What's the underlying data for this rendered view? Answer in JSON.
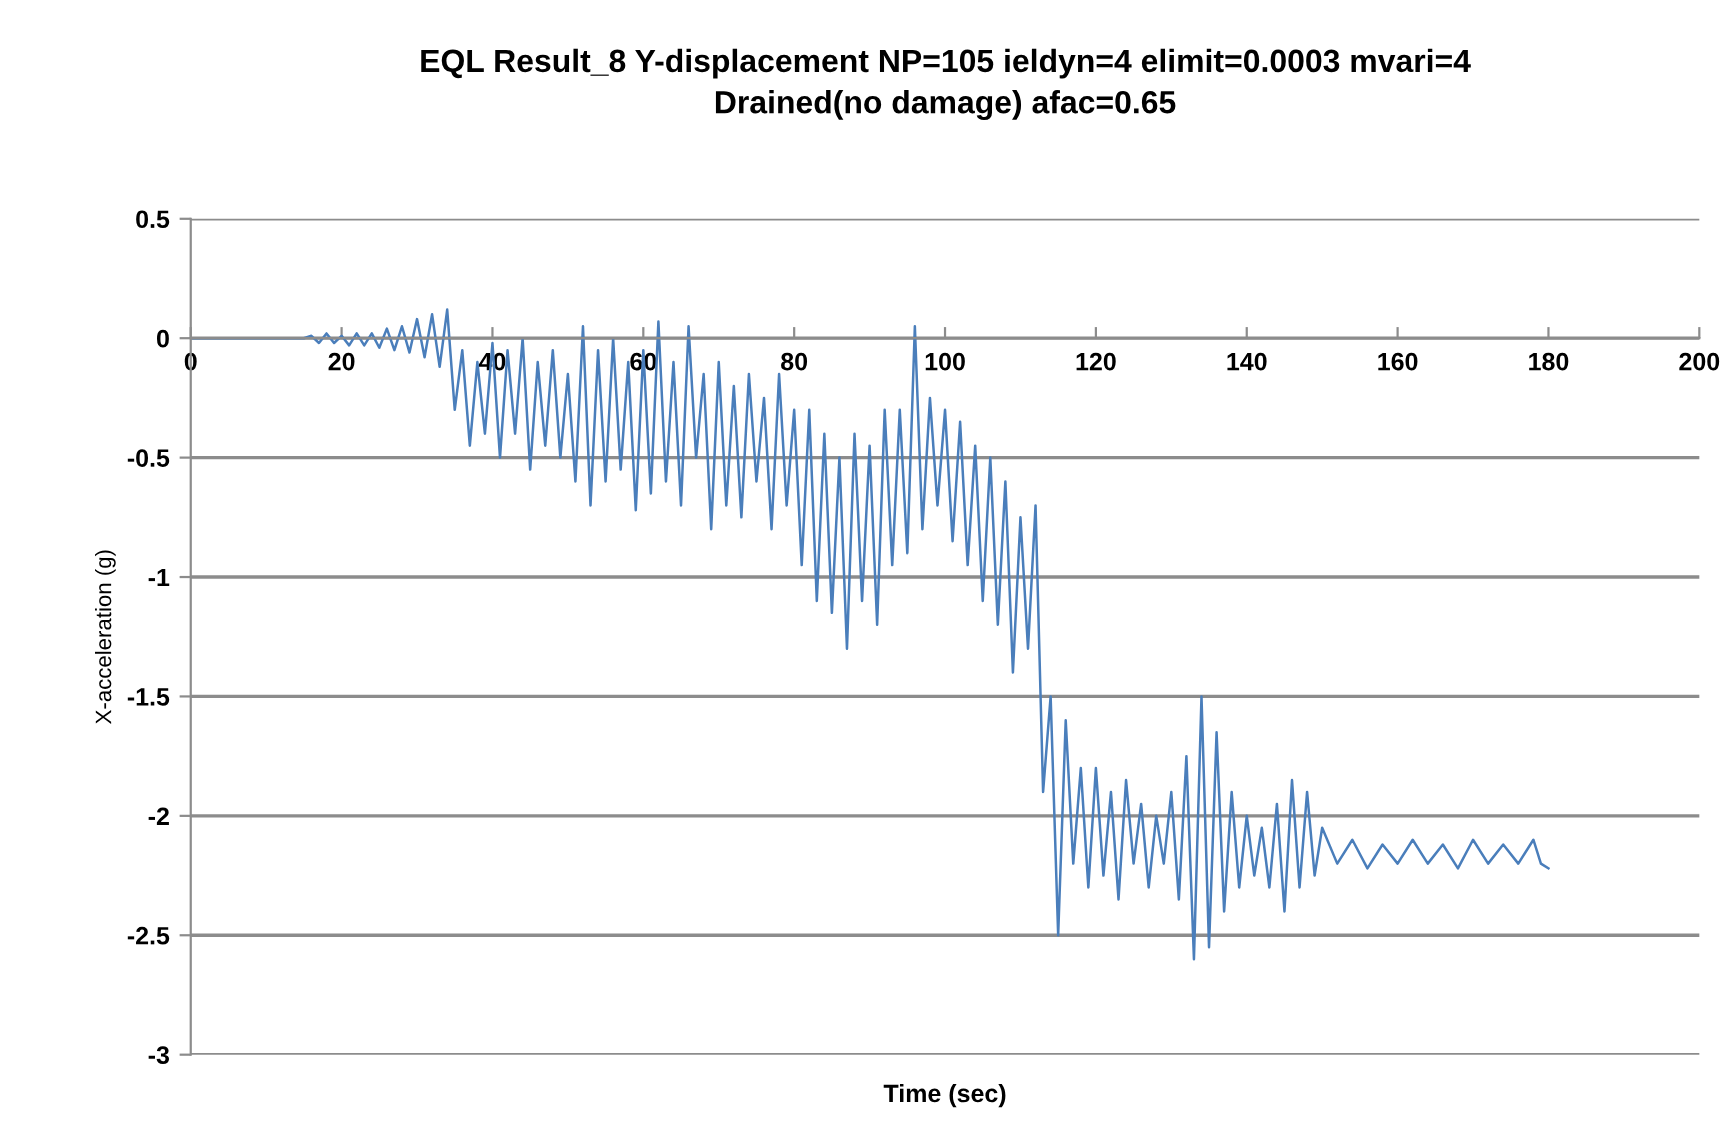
{
  "chart_data": {
    "type": "line",
    "title": "EQL Result_8 Y-displacement NP=105 ieldyn=4 elimit=0.0003 mvari=4\nDrained(no damage) afac=0.65",
    "xlabel": "Time (sec)",
    "ylabel": "X-acceleration (g)",
    "xlim": [
      0,
      200
    ],
    "xticks": [
      0,
      20,
      40,
      60,
      80,
      100,
      120,
      140,
      160,
      180,
      200
    ],
    "ylim": [
      -3,
      0.5
    ],
    "yticks": [
      -3,
      -2.5,
      -2,
      -1.5,
      -1,
      -0.5,
      0,
      0.5
    ],
    "grid": "y",
    "marker": "none",
    "line_style": "solid",
    "series": [
      {
        "color": "#4a7ebb",
        "x": [
          0,
          15,
          16,
          17,
          18,
          19,
          20,
          21,
          22,
          23,
          24,
          25,
          26,
          27,
          28,
          29,
          30,
          31,
          32,
          33,
          34,
          35,
          36,
          37,
          38,
          39,
          40,
          41,
          42,
          43,
          44,
          45,
          46,
          47,
          48,
          49,
          50,
          51,
          52,
          53,
          54,
          55,
          56,
          57,
          58,
          59,
          60,
          61,
          62,
          63,
          64,
          65,
          66,
          67,
          68,
          69,
          70,
          71,
          72,
          73,
          74,
          75,
          76,
          77,
          78,
          79,
          80,
          81,
          82,
          83,
          84,
          85,
          86,
          87,
          88,
          89,
          90,
          91,
          92,
          93,
          94,
          95,
          96,
          97,
          98,
          99,
          100,
          101,
          102,
          103,
          104,
          105,
          106,
          107,
          108,
          109,
          110,
          111,
          112,
          113,
          114,
          115,
          116,
          117,
          118,
          119,
          120,
          121,
          122,
          123,
          124,
          125,
          126,
          127,
          128,
          129,
          130,
          131,
          132,
          133,
          134,
          135,
          136,
          137,
          138,
          139,
          140,
          141,
          142,
          143,
          144,
          145,
          146,
          147,
          148,
          149,
          150,
          152,
          154,
          156,
          158,
          160,
          162,
          164,
          166,
          168,
          170,
          172,
          174,
          176,
          178,
          179,
          180
        ],
        "values": [
          0,
          0,
          0.01,
          -0.02,
          0.02,
          -0.02,
          0.01,
          -0.03,
          0.02,
          -0.03,
          0.02,
          -0.04,
          0.04,
          -0.05,
          0.05,
          -0.06,
          0.08,
          -0.08,
          0.1,
          -0.12,
          0.12,
          -0.3,
          -0.05,
          -0.45,
          -0.1,
          -0.4,
          -0.02,
          -0.5,
          -0.05,
          -0.4,
          0.0,
          -0.55,
          -0.1,
          -0.45,
          -0.05,
          -0.5,
          -0.15,
          -0.6,
          0.05,
          -0.7,
          -0.05,
          -0.6,
          0.0,
          -0.55,
          -0.1,
          -0.72,
          -0.05,
          -0.65,
          0.07,
          -0.6,
          -0.1,
          -0.7,
          0.05,
          -0.5,
          -0.15,
          -0.8,
          -0.1,
          -0.7,
          -0.2,
          -0.75,
          -0.15,
          -0.6,
          -0.25,
          -0.8,
          -0.15,
          -0.7,
          -0.3,
          -0.95,
          -0.3,
          -1.1,
          -0.4,
          -1.15,
          -0.5,
          -1.3,
          -0.4,
          -1.1,
          -0.45,
          -1.2,
          -0.3,
          -0.95,
          -0.3,
          -0.9,
          0.05,
          -0.8,
          -0.25,
          -0.7,
          -0.3,
          -0.85,
          -0.35,
          -0.95,
          -0.45,
          -1.1,
          -0.5,
          -1.2,
          -0.6,
          -1.4,
          -0.75,
          -1.3,
          -0.7,
          -1.9,
          -1.5,
          -2.5,
          -1.6,
          -2.2,
          -1.8,
          -2.3,
          -1.8,
          -2.25,
          -1.9,
          -2.35,
          -1.85,
          -2.2,
          -1.95,
          -2.3,
          -2.0,
          -2.2,
          -1.9,
          -2.35,
          -1.75,
          -2.6,
          -1.5,
          -2.55,
          -1.65,
          -2.4,
          -1.9,
          -2.3,
          -2.0,
          -2.25,
          -2.05,
          -2.3,
          -1.95,
          -2.4,
          -1.85,
          -2.3,
          -1.9,
          -2.25,
          -2.05,
          -2.2,
          -2.1,
          -2.22,
          -2.12,
          -2.2,
          -2.1,
          -2.2,
          -2.12,
          -2.22,
          -2.1,
          -2.2,
          -2.12,
          -2.2,
          -2.1,
          -2.2,
          -2.22
        ]
      }
    ]
  }
}
